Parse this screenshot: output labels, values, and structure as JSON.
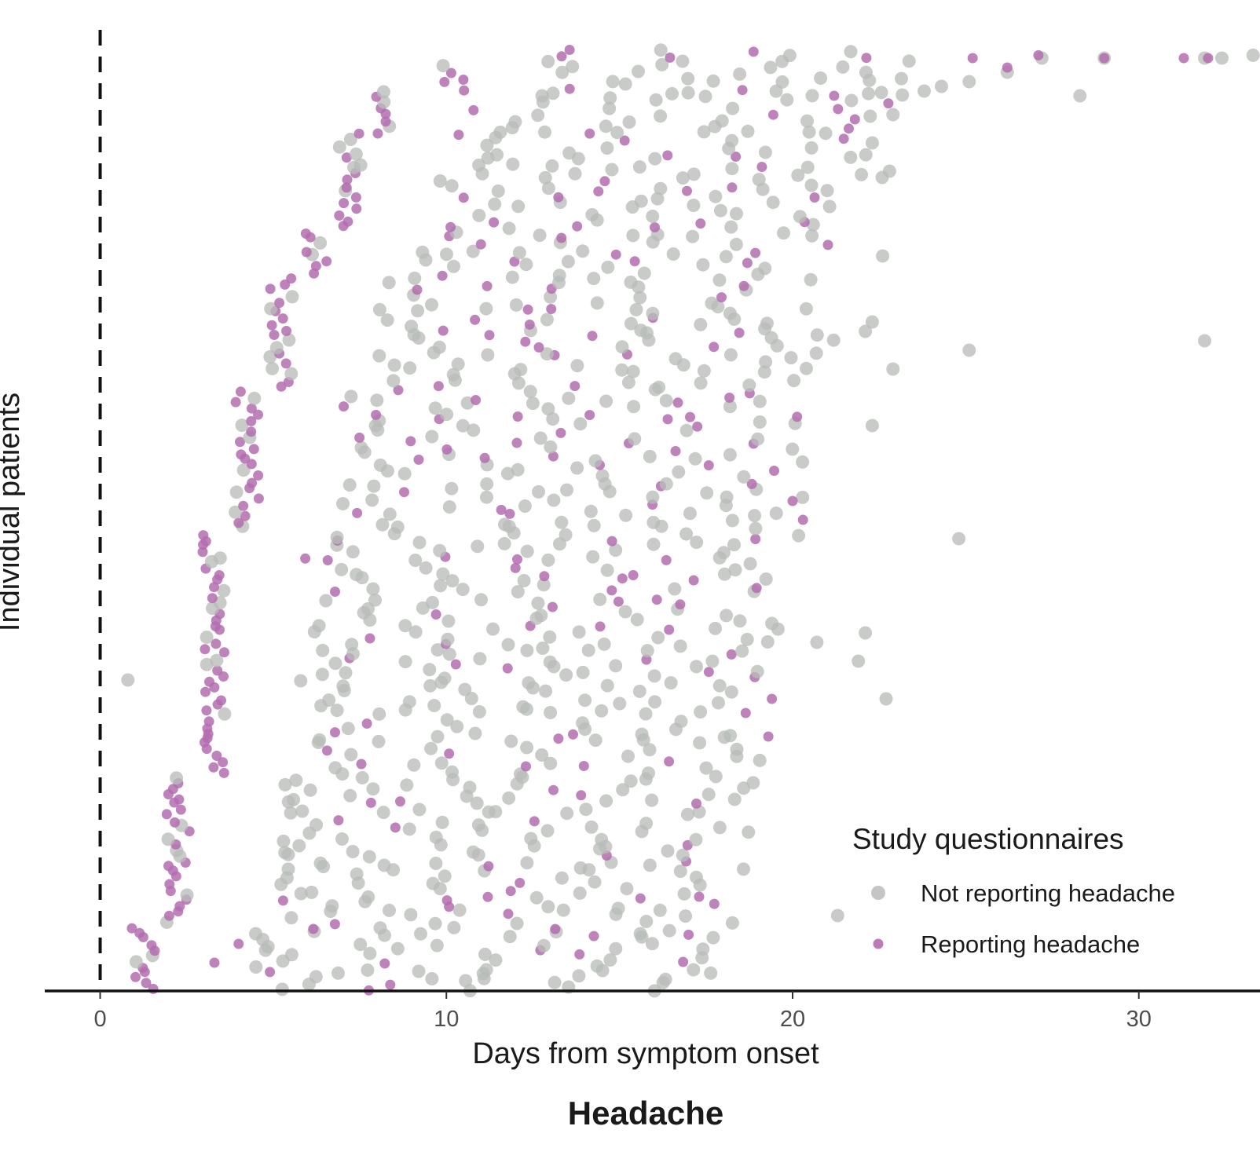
{
  "chart_data": {
    "type": "scatter",
    "title": "Headache",
    "xlabel": "Days from symptom onset",
    "ylabel": "Individual patients",
    "xlim": [
      -1.6,
      33.5
    ],
    "ylim": [
      0,
      1
    ],
    "x_ticks": [
      0,
      10,
      20,
      30
    ],
    "x_tick_labels": [
      "0",
      "10",
      "20",
      "30"
    ],
    "grid": false,
    "reference_line": {
      "x": 0,
      "style": "dashed"
    },
    "legend": {
      "title": "Study questionnaires",
      "position": "bottom-right",
      "entries": [
        {
          "key": "not",
          "label": "Not reporting headache",
          "color": "#b9bcb9"
        },
        {
          "key": "rep",
          "label": "Reporting headache",
          "color": "#b46db0"
        }
      ]
    },
    "y_units": "fraction of patients, ordered by day of first questionnaire (1 = top)",
    "onset_groups": [
      {
        "x_start": 1,
        "y_range": [
          0.0,
          0.07
        ]
      },
      {
        "x_start": 2,
        "y_range": [
          0.07,
          0.23
        ]
      },
      {
        "x_start": 3,
        "y_range": [
          0.23,
          0.49
        ]
      },
      {
        "x_start": 4,
        "y_range": [
          0.49,
          0.64
        ]
      },
      {
        "x_start": 5,
        "y_range": [
          0.64,
          0.76
        ]
      },
      {
        "x_start": 6,
        "y_range": [
          0.76,
          0.81
        ]
      },
      {
        "x_start": 7,
        "y_range": [
          0.81,
          0.91
        ]
      },
      {
        "x_start": 8,
        "y_range": [
          0.91,
          0.955
        ]
      },
      {
        "x_start": 10,
        "y_range": [
          0.955,
          0.985
        ]
      },
      {
        "x_start": 13,
        "y_range": [
          0.985,
          1.0
        ]
      }
    ],
    "series": [
      {
        "name": "Not reporting headache",
        "points": [
          [
            0.8,
            0.33
          ],
          [
            21.3,
            0.08
          ],
          [
            22.7,
            0.31
          ],
          [
            21.9,
            0.35
          ],
          [
            20.7,
            0.37
          ],
          [
            22.1,
            0.38
          ],
          [
            19.4,
            0.39
          ],
          [
            24.8,
            0.48
          ],
          [
            22.3,
            0.6
          ],
          [
            22.9,
            0.66
          ],
          [
            25.1,
            0.68
          ],
          [
            31.9,
            0.69
          ],
          [
            22.1,
            0.7
          ],
          [
            22.3,
            0.71
          ],
          [
            22.6,
            0.78
          ],
          [
            28.3,
            0.95
          ],
          [
            25.1,
            0.965
          ],
          [
            26.2,
            0.975
          ],
          [
            27.2,
            0.99
          ],
          [
            29.0,
            0.99
          ],
          [
            31.9,
            0.99
          ],
          [
            33.3,
            0.993
          ],
          [
            32.4,
            0.99
          ],
          [
            24.3,
            0.96
          ],
          [
            23.8,
            0.955
          ],
          [
            21.7,
            0.945
          ],
          [
            22.9,
            0.93
          ],
          [
            22.3,
            0.9
          ],
          [
            22.8,
            0.87
          ]
        ]
      },
      {
        "name": "Reporting headache",
        "points": [
          [
            3.3,
            0.03
          ],
          [
            4.0,
            0.05
          ],
          [
            17.3,
            0.1
          ],
          [
            19.3,
            0.27
          ],
          [
            19.4,
            0.31
          ],
          [
            21.2,
            0.95
          ],
          [
            29.0,
            0.99
          ],
          [
            26.2,
            0.98
          ],
          [
            25.2,
            0.99
          ],
          [
            27.1,
            0.993
          ],
          [
            31.3,
            0.99
          ],
          [
            32.0,
            0.99
          ],
          [
            21.8,
            0.925
          ],
          [
            20.3,
            0.5
          ],
          [
            20.0,
            0.52
          ]
        ]
      }
    ]
  }
}
